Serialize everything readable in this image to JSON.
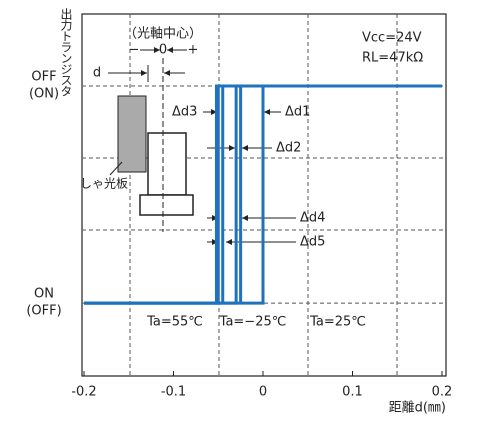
{
  "chart_data": {
    "type": "line",
    "y_axis_title": "出力トランジスタ",
    "x_axis_title": "距離d(㎜)",
    "xlim": [
      -0.2,
      0.2
    ],
    "xticks": [
      -0.2,
      -0.1,
      0,
      0.1,
      0.2
    ],
    "ylim": [
      -0.336,
      1.332
    ],
    "yticks": [
      {
        "value": 1,
        "label": "OFF"
      },
      {
        "value": 0,
        "label": "ON"
      }
    ],
    "ytick_sublabels": [
      "(ON)",
      "(OFF)"
    ],
    "grid": true,
    "series": [
      {
        "name": "Ta=55℃",
        "color": "#1f72c0",
        "x": [
          -0.2,
          -0.052,
          -0.052,
          0.2,
          null,
          -0.045,
          -0.045
        ],
        "values": [
          0,
          0,
          1,
          1,
          null,
          0,
          1
        ]
      },
      {
        "name": "Ta=−25℃",
        "color": "#1f72c0",
        "x": [
          -0.2,
          -0.03,
          -0.03,
          0.2,
          null,
          -0.025,
          -0.025
        ],
        "values": [
          0,
          0,
          1,
          1,
          null,
          0,
          1
        ]
      },
      {
        "name": "Ta=25℃",
        "color": "#1f72c0",
        "x": [
          -0.2,
          0,
          0,
          0.2,
          null,
          -0.05,
          -0.05
        ],
        "values": [
          0,
          0,
          1,
          1,
          null,
          0,
          1
        ]
      }
    ],
    "annotations": {
      "center": "（光軸中心）",
      "minus": "−",
      "zero": "0",
      "plus": "+",
      "d": "d",
      "plate": "しゃ光板",
      "vcc": "Vcc=24V",
      "rl": "RL=47kΩ",
      "dd1": "Δd1",
      "dd2": "Δd2",
      "dd3": "Δd3",
      "dd4": "Δd4",
      "dd5": "Δd5"
    }
  }
}
